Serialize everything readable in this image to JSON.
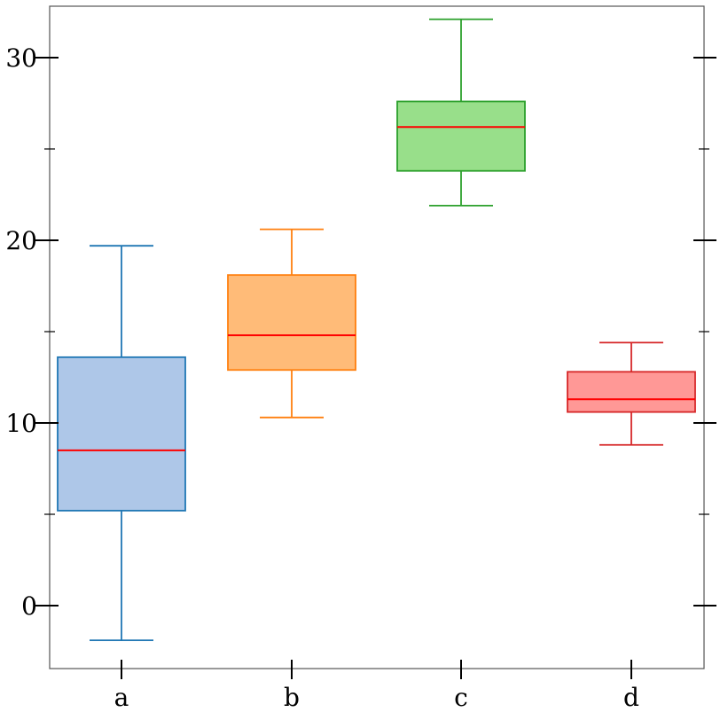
{
  "chart_data": {
    "type": "boxplot",
    "title": "",
    "xlabel": "",
    "ylabel": "",
    "categories": [
      "a",
      "b",
      "c",
      "d"
    ],
    "ylim": [
      -3.5,
      32.8
    ],
    "yticks_major": [
      0,
      10,
      20,
      30
    ],
    "yticks_minor": [
      5,
      15,
      25
    ],
    "ytick_labels": [
      "0",
      "10",
      "20",
      "30"
    ],
    "grid": false,
    "boxes": [
      {
        "category": "a",
        "whisker_low": -1.9,
        "q1": 5.2,
        "median": 8.5,
        "q3": 13.6,
        "whisker_high": 19.7,
        "edge_color": "#1f77b4",
        "fill_color": "#aec7e8"
      },
      {
        "category": "b",
        "whisker_low": 10.3,
        "q1": 12.9,
        "median": 14.8,
        "q3": 18.1,
        "whisker_high": 20.6,
        "edge_color": "#ff7f0e",
        "fill_color": "#ffbb78"
      },
      {
        "category": "c",
        "whisker_low": 21.9,
        "q1": 23.8,
        "median": 26.2,
        "q3": 27.6,
        "whisker_high": 32.1,
        "edge_color": "#2ca02c",
        "fill_color": "#98df8a"
      },
      {
        "category": "d",
        "whisker_low": 8.8,
        "q1": 10.6,
        "median": 11.3,
        "q3": 12.8,
        "whisker_high": 14.4,
        "edge_color": "#d62728",
        "fill_color": "#ff9896"
      }
    ],
    "median_color": "#ff0000",
    "axis_color": "#555555"
  }
}
